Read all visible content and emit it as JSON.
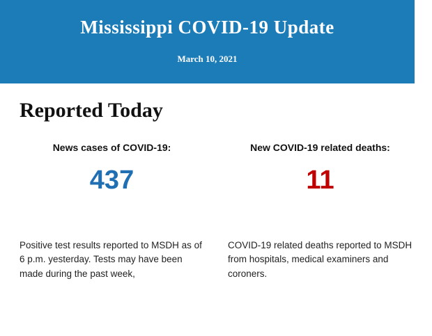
{
  "header": {
    "title": "Mississippi COVID-19 Update",
    "date": "March 10, 2021",
    "background_color": "#1c7cb8",
    "text_color": "#ffffff"
  },
  "section": {
    "heading": "Reported Today"
  },
  "stats": {
    "cases": {
      "label": "News cases of COVID-19:",
      "value": "437",
      "color": "#1f6fb2",
      "description": "Positive test results reported to MSDH as of 6 p.m. yesterday. Tests may have been made during the past week,"
    },
    "deaths": {
      "label": "New COVID-19 related deaths:",
      "value": "11",
      "color": "#c00000",
      "description": "COVID-19 related deaths reported to MSDH from hospitals, medical examiners and coroners."
    }
  }
}
